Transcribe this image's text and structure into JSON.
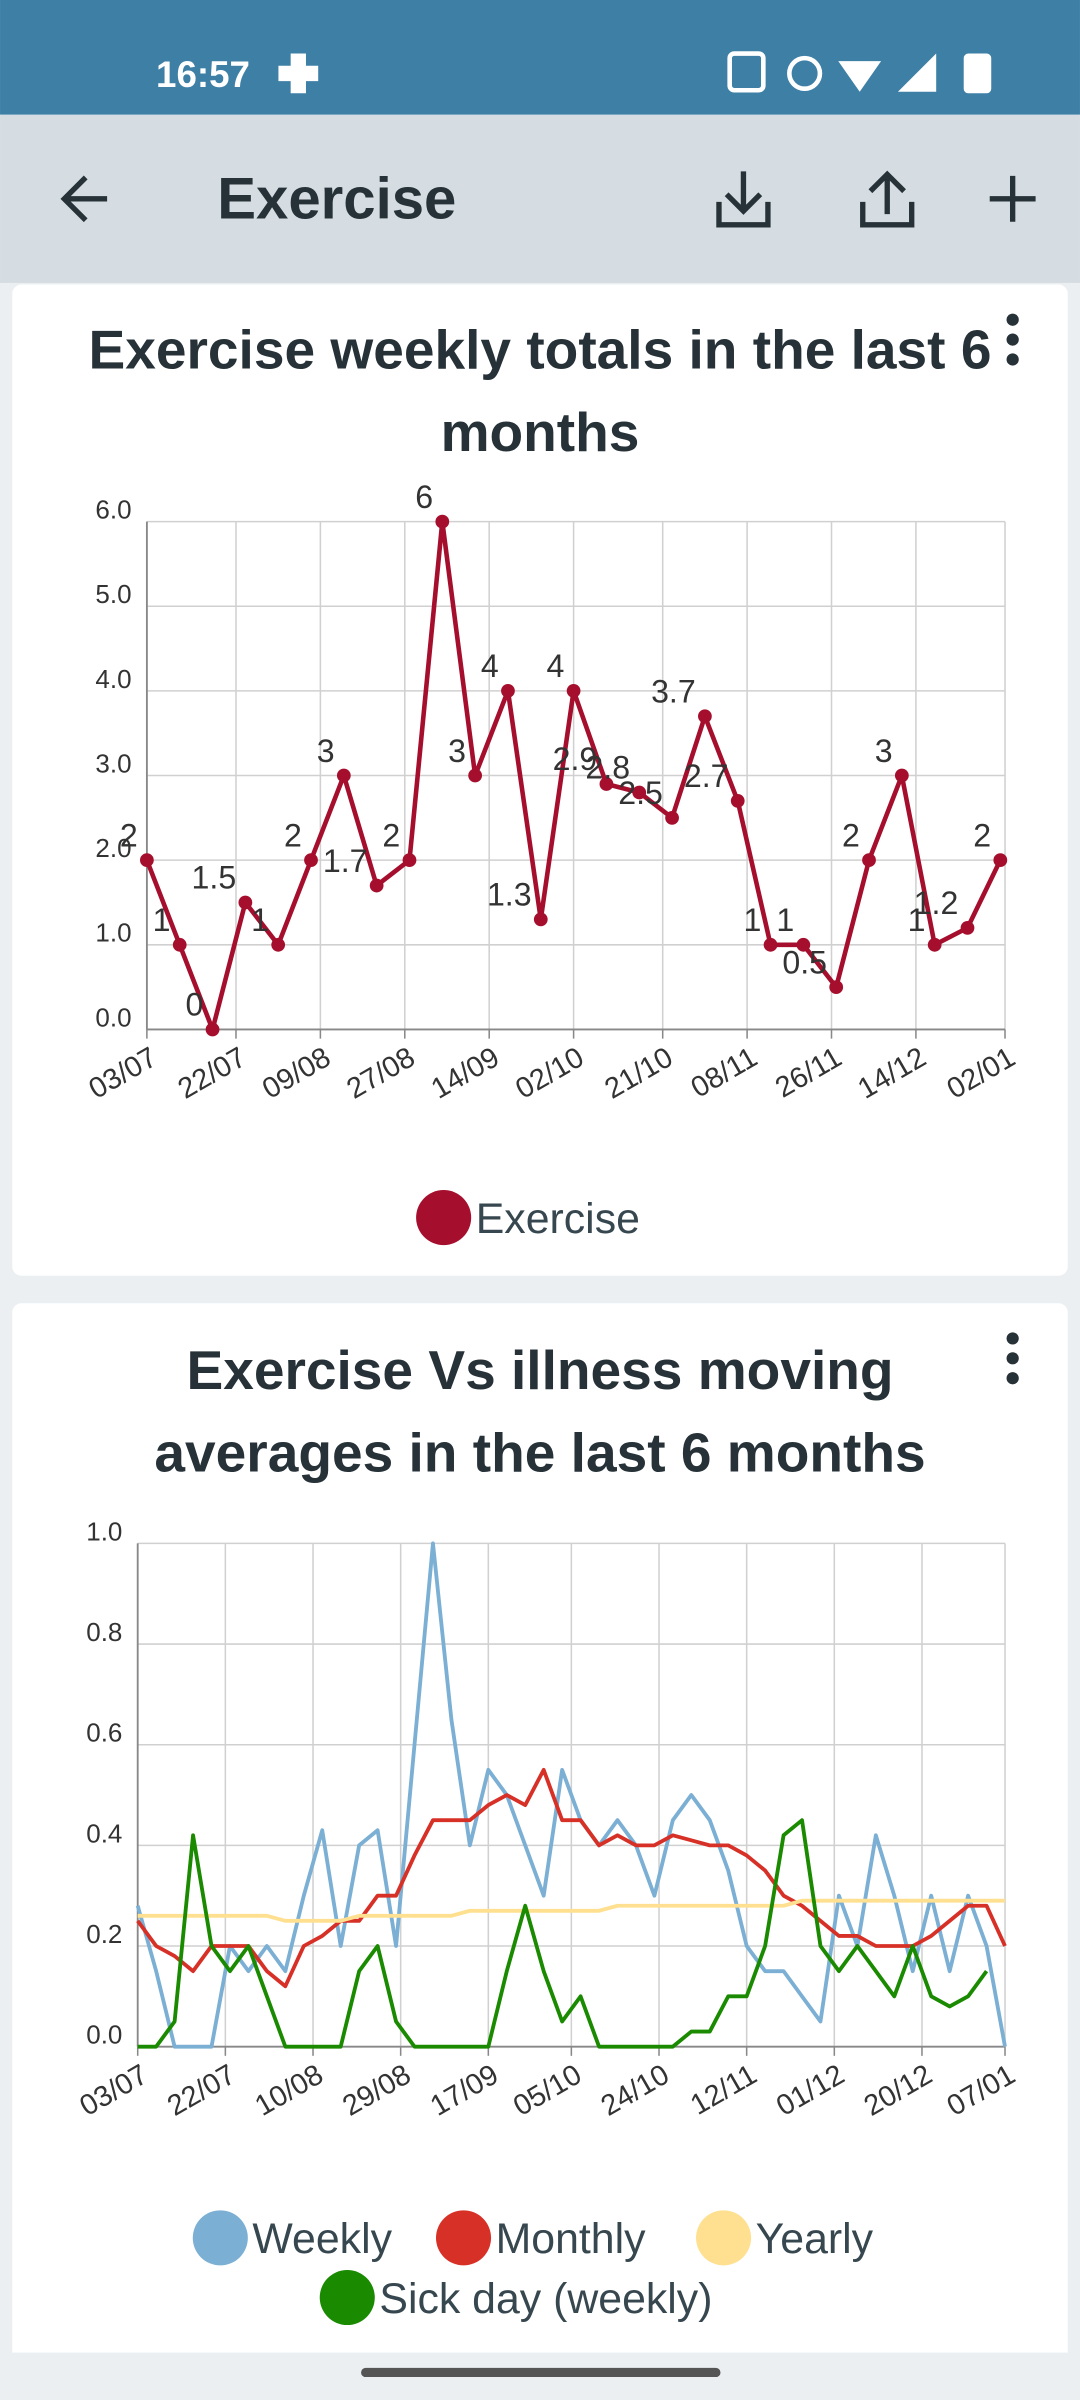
{
  "status_bar": {
    "time": "16:57"
  },
  "app_bar": {
    "title": "Exercise"
  },
  "chart_data": [
    {
      "type": "line",
      "title": "Exercise weekly totals in the last 6 months",
      "x": [
        "03/07",
        "10/07",
        "17/07",
        "24/07",
        "31/07",
        "07/08",
        "14/08",
        "21/08",
        "28/08",
        "04/09",
        "11/09",
        "18/09",
        "25/09",
        "02/10",
        "09/10",
        "16/10",
        "23/10",
        "30/10",
        "06/11",
        "13/11",
        "20/11",
        "27/11",
        "04/12",
        "11/12",
        "18/12",
        "25/12",
        "01/01"
      ],
      "series": [
        {
          "name": "Exercise",
          "color": "#a50f2d",
          "values": [
            2,
            1,
            0,
            1.5,
            1,
            2,
            3,
            1.7,
            2,
            6,
            3,
            4,
            1.3,
            4,
            2.9,
            2.8,
            2.5,
            3.7,
            2.7,
            1,
            1,
            0.5,
            2,
            3,
            1,
            1.2,
            2
          ]
        }
      ],
      "xlim": [
        "03/07",
        "02/01"
      ],
      "xticks": [
        "03/07",
        "22/07",
        "09/08",
        "27/08",
        "14/09",
        "02/10",
        "21/10",
        "08/11",
        "26/11",
        "14/12",
        "02/01"
      ],
      "ylim": [
        0,
        6
      ],
      "yticks": [
        {
          "value": 0,
          "label": "0.0"
        },
        {
          "value": 1,
          "label": "1.0"
        },
        {
          "value": 2,
          "label": "2.0"
        },
        {
          "value": 3,
          "label": "3.0"
        },
        {
          "value": 4,
          "label": "4.0"
        },
        {
          "value": 5,
          "label": "5.0"
        },
        {
          "value": 6,
          "label": "6.0"
        }
      ],
      "grid": true,
      "markers": true,
      "data_labels": true,
      "legend": "bottom"
    },
    {
      "type": "line",
      "title": "Exercise Vs illness moving averages in the last 6 months",
      "x": [
        "03/07",
        "07/07",
        "11/07",
        "15/07",
        "19/07",
        "23/07",
        "27/07",
        "31/07",
        "04/08",
        "08/08",
        "12/08",
        "16/08",
        "20/08",
        "24/08",
        "28/08",
        "01/09",
        "05/09",
        "09/09",
        "13/09",
        "17/09",
        "21/09",
        "25/09",
        "29/09",
        "03/10",
        "07/10",
        "11/10",
        "15/10",
        "19/10",
        "23/10",
        "27/10",
        "31/10",
        "04/11",
        "08/11",
        "12/11",
        "16/11",
        "20/11",
        "24/11",
        "28/11",
        "02/12",
        "06/12",
        "10/12",
        "14/12",
        "18/12",
        "22/12",
        "26/12",
        "30/12",
        "03/01",
        "07/01"
      ],
      "series": [
        {
          "name": "Weekly",
          "color": "#7bafd4",
          "values": [
            0.28,
            0.15,
            0,
            0,
            0,
            0.2,
            0.15,
            0.2,
            0.15,
            0.3,
            0.43,
            0.2,
            0.4,
            0.43,
            0.2,
            0.6,
            1.0,
            0.65,
            0.4,
            0.55,
            0.5,
            0.4,
            0.3,
            0.55,
            0.45,
            0.4,
            0.45,
            0.4,
            0.3,
            0.45,
            0.5,
            0.45,
            0.35,
            0.2,
            0.15,
            0.15,
            0.1,
            0.05,
            0.3,
            0.2,
            0.42,
            0.3,
            0.15,
            0.3,
            0.15,
            0.3,
            0.2,
            0
          ]
        },
        {
          "name": "Monthly",
          "color": "#d73027",
          "values": [
            0.25,
            0.2,
            0.18,
            0.15,
            0.2,
            0.2,
            0.2,
            0.15,
            0.12,
            0.2,
            0.22,
            0.25,
            0.25,
            0.3,
            0.3,
            0.38,
            0.45,
            0.45,
            0.45,
            0.48,
            0.5,
            0.48,
            0.55,
            0.45,
            0.45,
            0.4,
            0.42,
            0.4,
            0.4,
            0.42,
            0.41,
            0.4,
            0.4,
            0.38,
            0.35,
            0.3,
            0.28,
            0.25,
            0.22,
            0.22,
            0.2,
            0.2,
            0.2,
            0.22,
            0.25,
            0.28,
            0.28,
            0.2
          ]
        },
        {
          "name": "Yearly",
          "color": "#fee090",
          "values": [
            0.26,
            0.26,
            0.26,
            0.26,
            0.26,
            0.26,
            0.26,
            0.26,
            0.25,
            0.25,
            0.25,
            0.25,
            0.26,
            0.26,
            0.26,
            0.26,
            0.26,
            0.26,
            0.27,
            0.27,
            0.27,
            0.27,
            0.27,
            0.27,
            0.27,
            0.27,
            0.28,
            0.28,
            0.28,
            0.28,
            0.28,
            0.28,
            0.28,
            0.28,
            0.28,
            0.28,
            0.29,
            0.29,
            0.29,
            0.29,
            0.29,
            0.29,
            0.29,
            0.29,
            0.29,
            0.29,
            0.29,
            0.29
          ]
        },
        {
          "name": "Sick day (weekly)",
          "color": "#1a8a00",
          "values": [
            0,
            0,
            0.05,
            0.42,
            0.2,
            0.15,
            0.2,
            0.1,
            0,
            0,
            0,
            0,
            0.15,
            0.2,
            0.05,
            0,
            0,
            0,
            0,
            0,
            0.15,
            0.28,
            0.15,
            0.05,
            0.1,
            0,
            0,
            0,
            0,
            0,
            0.03,
            0.03,
            0.1,
            0.1,
            0.2,
            0.42,
            0.45,
            0.2,
            0.15,
            0.2,
            0.15,
            0.1,
            0.2,
            0.1,
            0.08,
            0.1,
            0.15,
            null
          ]
        }
      ],
      "xlim": [
        "03/07",
        "07/01"
      ],
      "xticks": [
        "03/07",
        "22/07",
        "10/08",
        "29/08",
        "17/09",
        "05/10",
        "24/10",
        "12/11",
        "01/12",
        "20/12",
        "07/01"
      ],
      "ylim": [
        0,
        1
      ],
      "yticks": [
        {
          "value": 0,
          "label": "0.0"
        },
        {
          "value": 0.2,
          "label": "0.2"
        },
        {
          "value": 0.4,
          "label": "0.4"
        },
        {
          "value": 0.6,
          "label": "0.6"
        },
        {
          "value": 0.8,
          "label": "0.8"
        },
        {
          "value": 1,
          "label": "1.0"
        }
      ],
      "grid": true,
      "markers": false,
      "data_labels": false,
      "legend": "bottom"
    }
  ]
}
